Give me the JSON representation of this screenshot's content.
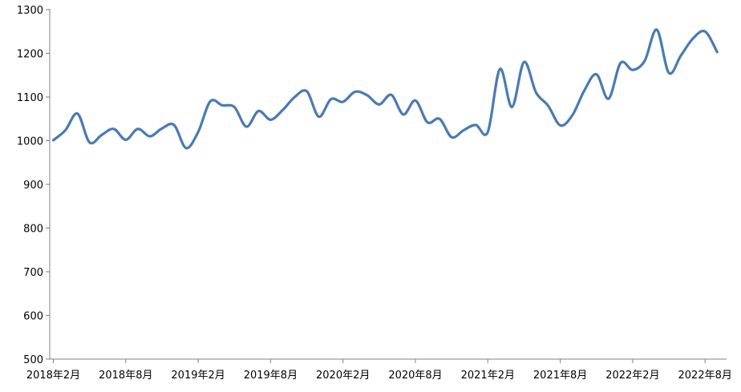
{
  "chart_data": {
    "type": "line",
    "title": "",
    "xlabel": "",
    "ylabel": "",
    "ylim": [
      500,
      1300
    ],
    "y_ticks": [
      500,
      600,
      700,
      800,
      900,
      1000,
      1100,
      1200,
      1300
    ],
    "x_tick_labels": [
      "2018年2月",
      "2018年8月",
      "2019年2月",
      "2019年8月",
      "2020年2月",
      "2020年8月",
      "2021年2月",
      "2021年8月",
      "2022年2月",
      "2022年8月"
    ],
    "x_tick_index": [
      0,
      6,
      12,
      18,
      24,
      30,
      36,
      42,
      48,
      54
    ],
    "grid": false,
    "legend": "none",
    "color": "#4a7ab5",
    "series": [
      {
        "values": [
          1001,
          1024,
          1062,
          996,
          1013,
          1027,
          1002,
          1027,
          1010,
          1028,
          1036,
          983,
          1020,
          1090,
          1081,
          1077,
          1032,
          1068,
          1048,
          1070,
          1100,
          1113,
          1055,
          1095,
          1089,
          1112,
          1104,
          1083,
          1105,
          1060,
          1092,
          1042,
          1050,
          1008,
          1024,
          1036,
          1020,
          1164,
          1077,
          1180,
          1110,
          1080,
          1035,
          1058,
          1115,
          1152,
          1096,
          1178,
          1162,
          1183,
          1254,
          1155,
          1195,
          1234,
          1250,
          1203
        ]
      }
    ]
  }
}
